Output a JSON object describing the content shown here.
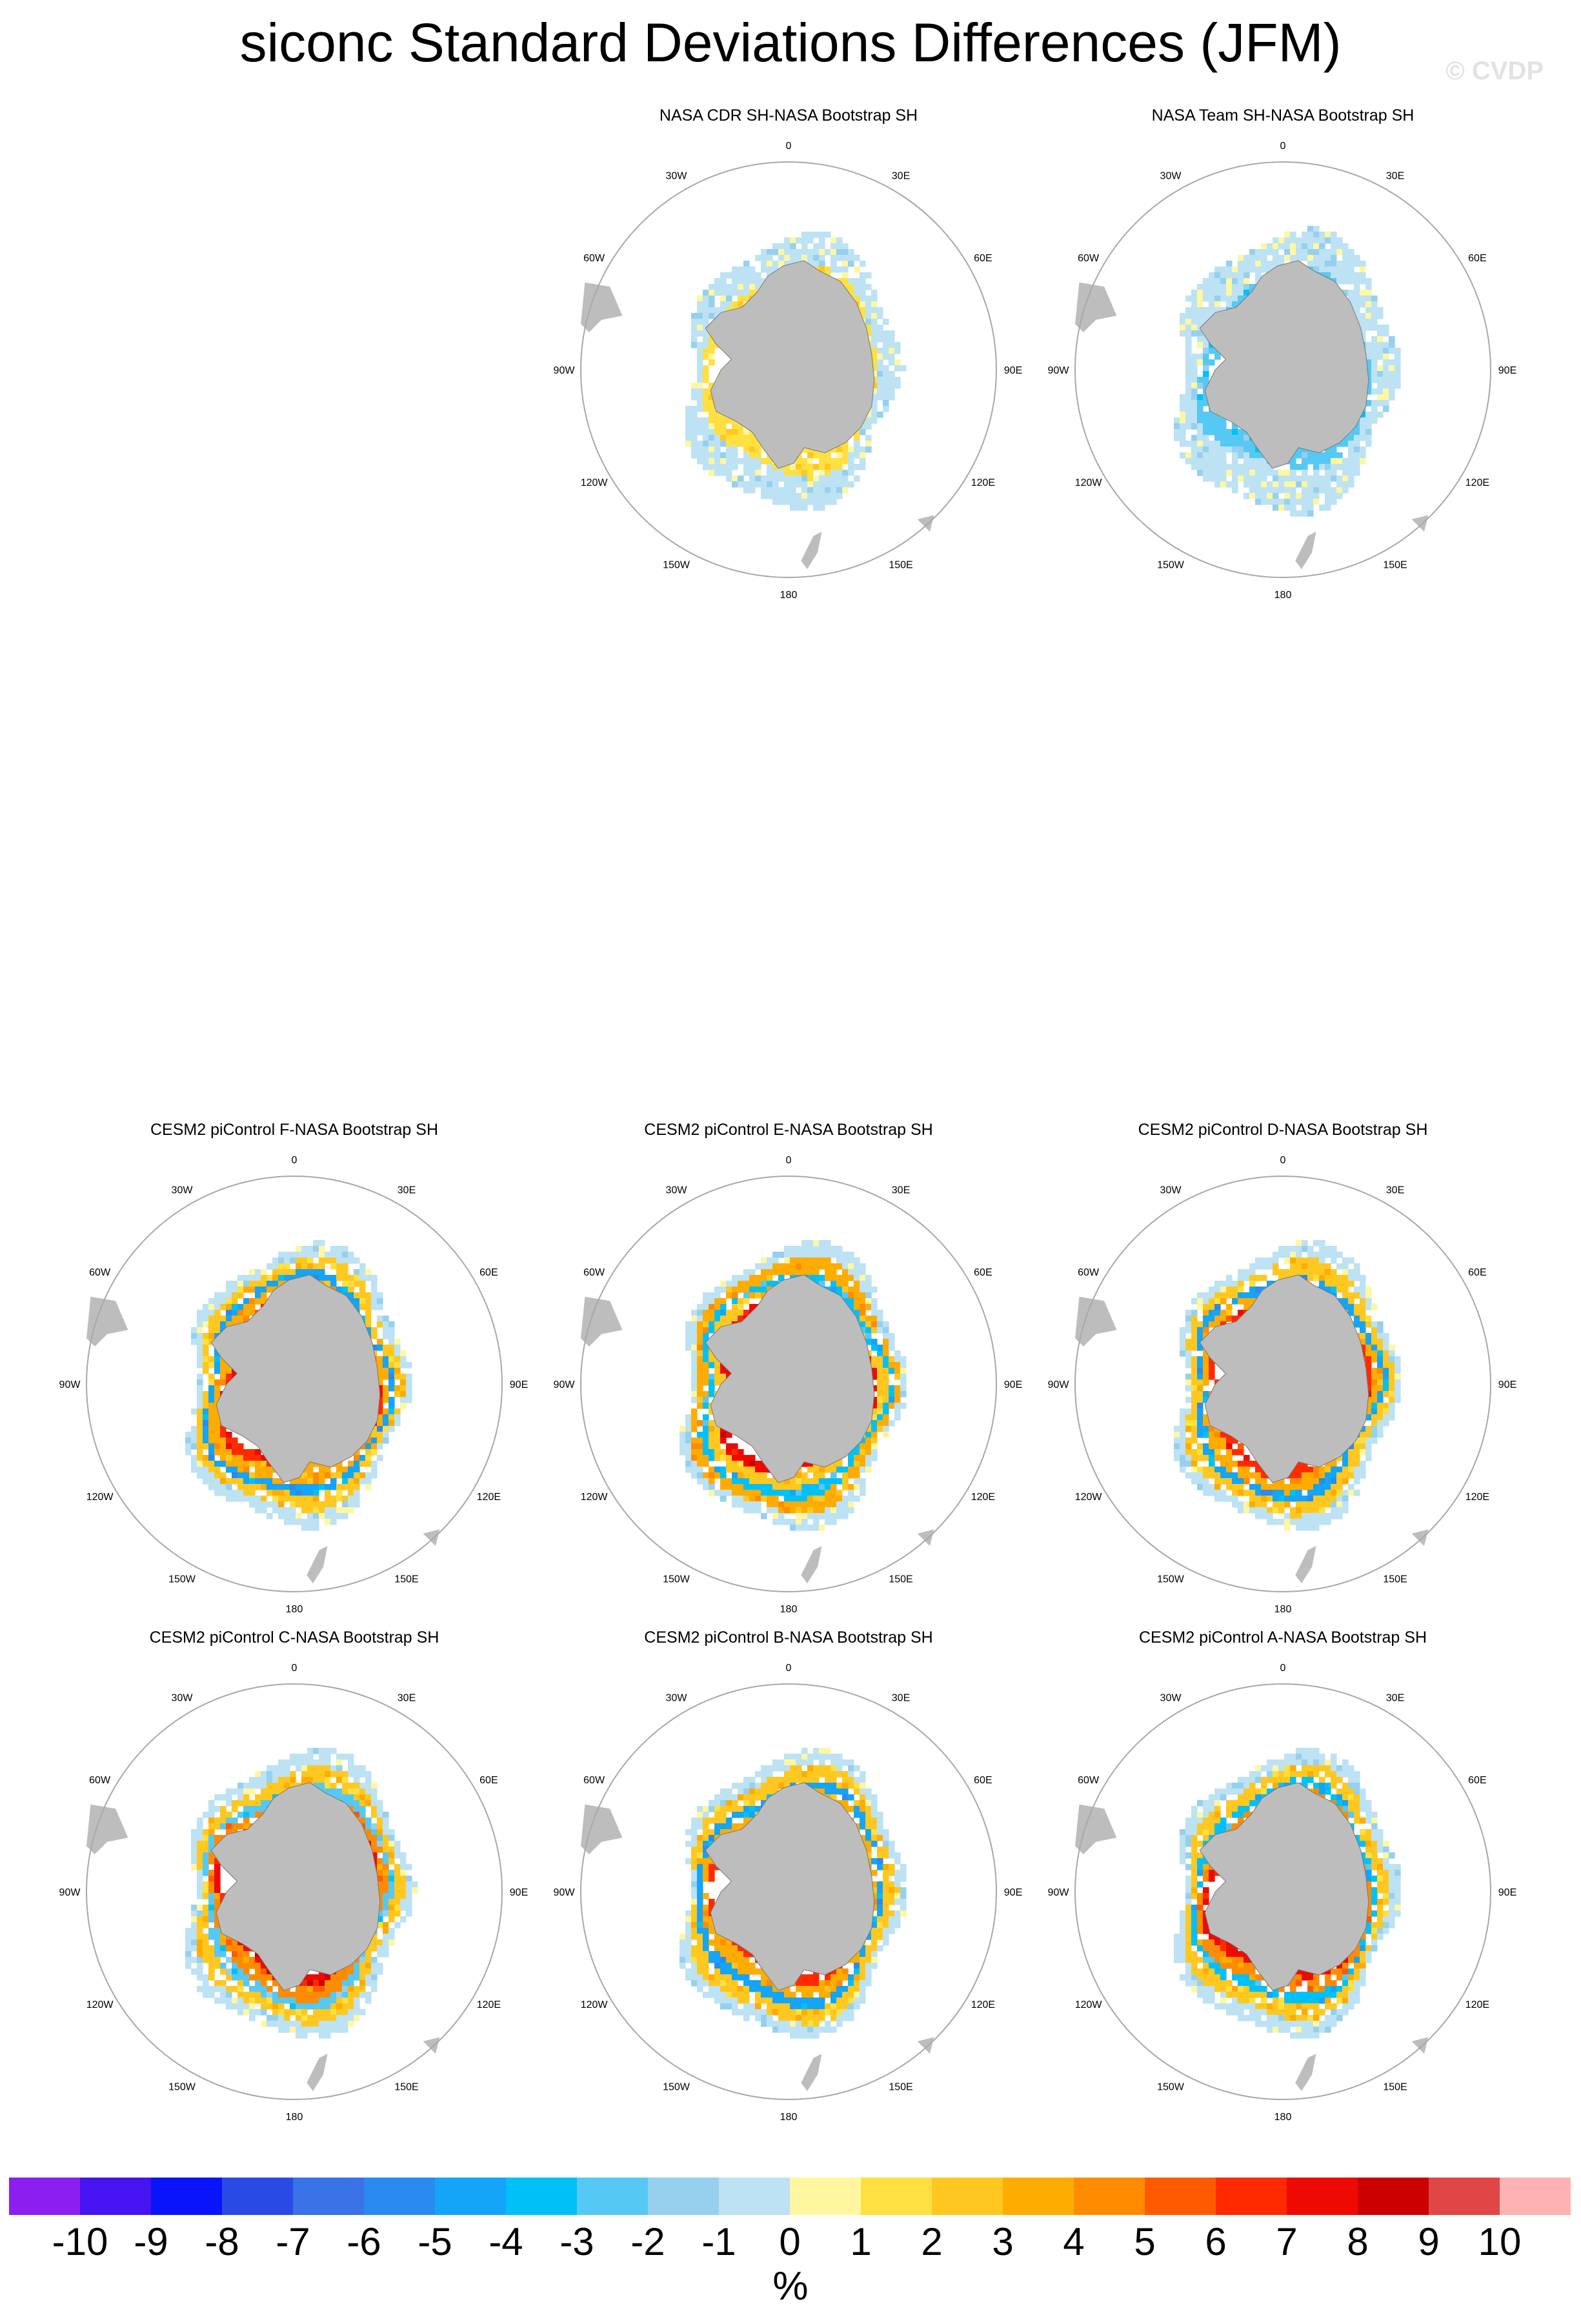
{
  "title": "siconc Standard Deviations Differences (JFM)",
  "watermark": "© CVDP",
  "colors": {
    "land": "#bdbdbd",
    "circle": "#a8a8a8",
    "palette": [
      "#8a1ff0",
      "#4614f0",
      "#0a14fa",
      "#2a4ae6",
      "#3a72e8",
      "#2a8af0",
      "#14a4f8",
      "#00c0f8",
      "#56c8f4",
      "#96d0ee",
      "#bce2f4",
      "#fff7a0",
      "#ffe040",
      "#ffc820",
      "#ffac00",
      "#ff8c00",
      "#ff5a00",
      "#ff2a00",
      "#ee0a00",
      "#cc0000",
      "#e04646",
      "#ffb2b2"
    ]
  },
  "chart_data": {
    "type": "heatmap",
    "projection": "south polar stereographic",
    "variable": "siconc",
    "units": "%",
    "colorbar": {
      "levels": [
        -10,
        -9,
        -8,
        -7,
        -6,
        -5,
        -4,
        -3,
        -2,
        -1,
        0,
        1,
        2,
        3,
        4,
        5,
        6,
        7,
        8,
        9,
        10
      ],
      "unit_label": "%"
    },
    "lon_labels": [
      "0",
      "30E",
      "60E",
      "90E",
      "120E",
      "150E",
      "180",
      "150W",
      "120W",
      "90W",
      "60W",
      "30W"
    ],
    "panels": [
      {
        "title": "NASA CDR SH-NASA Bootstrap SH",
        "bands": [
          {
            "value": 1,
            "width": 0.45
          },
          {
            "value": -1,
            "width": 0.45
          }
        ],
        "range_k": 0.95
      },
      {
        "title": "NASA Team SH-NASA Bootstrap SH",
        "bands": [
          {
            "value": -3,
            "width": 0.4
          },
          {
            "value": -1,
            "width": 0.55
          }
        ],
        "range_k": 1.02
      },
      {
        "title": "CESM2 piControl F-NASA Bootstrap SH",
        "bands": [
          {
            "value": 6,
            "width": 0.2
          },
          {
            "value": 3,
            "width": 0.25
          },
          {
            "value": -5,
            "width": 0.12
          },
          {
            "value": 2,
            "width": 0.2
          },
          {
            "value": -1,
            "width": 0.2
          }
        ],
        "range_k": 1.0
      },
      {
        "title": "CESM2 piControl E-NASA Bootstrap SH",
        "bands": [
          {
            "value": 7,
            "width": 0.2
          },
          {
            "value": 2,
            "width": 0.25
          },
          {
            "value": -4,
            "width": 0.15
          },
          {
            "value": 3,
            "width": 0.2
          },
          {
            "value": -1,
            "width": 0.2
          }
        ],
        "range_k": 1.0
      },
      {
        "title": "CESM2 piControl D-NASA Bootstrap SH",
        "bands": [
          {
            "value": 6,
            "width": 0.22
          },
          {
            "value": 3,
            "width": 0.22
          },
          {
            "value": -5,
            "width": 0.14
          },
          {
            "value": 2,
            "width": 0.22
          },
          {
            "value": -1,
            "width": 0.2
          }
        ],
        "range_k": 1.0
      },
      {
        "title": "CESM2 piControl C-NASA Bootstrap SH",
        "bands": [
          {
            "value": 7,
            "width": 0.2
          },
          {
            "value": 4,
            "width": 0.22
          },
          {
            "value": -3,
            "width": 0.14
          },
          {
            "value": 2,
            "width": 0.22
          },
          {
            "value": -1,
            "width": 0.22
          }
        ],
        "range_k": 1.02
      },
      {
        "title": "CESM2 piControl B-NASA Bootstrap SH",
        "bands": [
          {
            "value": 6,
            "width": 0.2
          },
          {
            "value": 3,
            "width": 0.24
          },
          {
            "value": -5,
            "width": 0.14
          },
          {
            "value": 2,
            "width": 0.22
          },
          {
            "value": -1,
            "width": 0.2
          }
        ],
        "range_k": 1.0
      },
      {
        "title": "CESM2 piControl A-NASA Bootstrap SH",
        "bands": [
          {
            "value": 7,
            "width": 0.2
          },
          {
            "value": 4,
            "width": 0.22
          },
          {
            "value": -4,
            "width": 0.14
          },
          {
            "value": 2,
            "width": 0.22
          },
          {
            "value": -1,
            "width": 0.22
          }
        ],
        "range_k": 1.0
      }
    ]
  }
}
